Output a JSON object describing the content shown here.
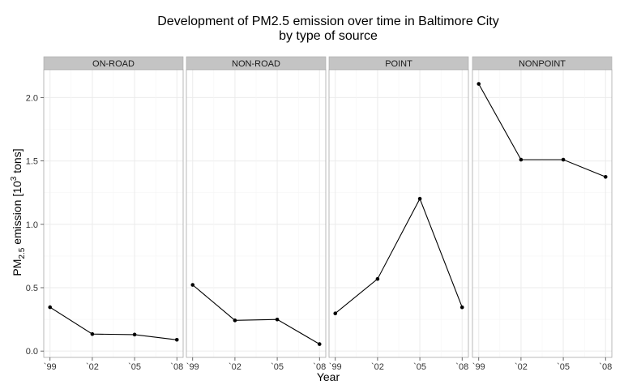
{
  "chart_data": {
    "type": "line",
    "title_line1": "Development of PM2.5 emission over time in Baltimore City",
    "title_line2": "by type of source",
    "xlabel": "Year",
    "ylabel": {
      "pm": "PM",
      "pm_sub": "2.5",
      "middle": " emission [10",
      "exp": "3",
      "end": " tons]"
    },
    "categories": [
      "`99",
      "`02",
      "`05",
      "`08"
    ],
    "y_ticks": [
      0.0,
      0.5,
      1.0,
      1.5,
      2.0
    ],
    "y_tick_labels": [
      "0.0",
      "0.5",
      "1.0",
      "1.5",
      "2.0"
    ],
    "ylim": [
      -0.05,
      2.22
    ],
    "grid": true,
    "panels": [
      {
        "name": "ON-ROAD",
        "values": [
          0.346,
          0.134,
          0.13,
          0.089
        ]
      },
      {
        "name": "NON-ROAD",
        "values": [
          0.522,
          0.242,
          0.249,
          0.055
        ]
      },
      {
        "name": "POINT",
        "values": [
          0.297,
          0.569,
          1.202,
          0.345
        ]
      },
      {
        "name": "NONPOINT",
        "values": [
          2.108,
          1.51,
          1.51,
          1.374
        ]
      }
    ],
    "colors": {
      "strip_fill": "#c4c4c4",
      "panel_border": "#a8a8a8",
      "grid_major": "#ebebeb",
      "grid_minor": "#f5f5f5",
      "line": "#000000"
    }
  }
}
